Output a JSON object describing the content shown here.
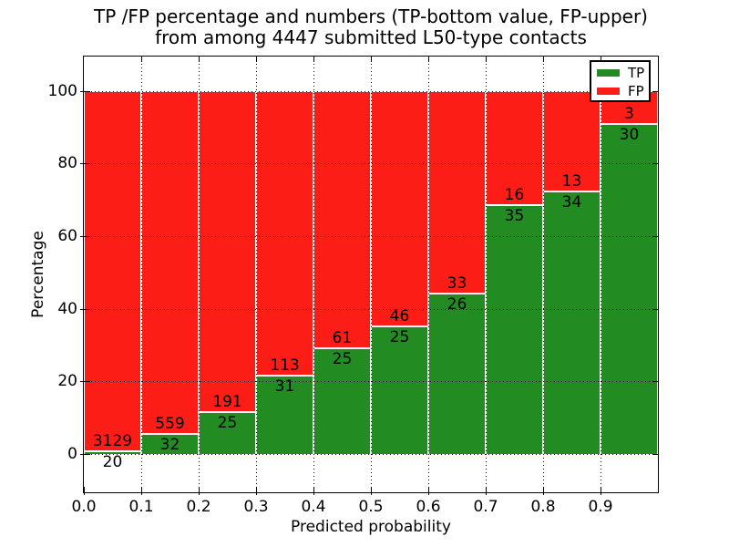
{
  "figure": {
    "title_line1": "TP /FP percentage and numbers (TP-bottom value, FP-upper)",
    "title_line2": "from among 4447 submitted L50-type contacts",
    "xlabel": "Predicted probability",
    "ylabel": "Percentage"
  },
  "legend": {
    "position": "upper right",
    "entries": [
      {
        "label": "TP",
        "color": "#228b22"
      },
      {
        "label": "FP",
        "color": "#fc1d17"
      }
    ]
  },
  "chart_data": {
    "type": "bar",
    "stacked": true,
    "normalized_to_percent": true,
    "title": "TP /FP percentage and numbers (TP-bottom value, FP-upper) from among 4447 submitted L50-type contacts",
    "xlabel": "Predicted probability",
    "ylabel": "Percentage",
    "categories": [
      "0.0",
      "0.1",
      "0.2",
      "0.3",
      "0.4",
      "0.5",
      "0.6",
      "0.7",
      "0.8",
      "0.9"
    ],
    "bin_width": 0.1,
    "series": [
      {
        "name": "TP",
        "color": "#228b22",
        "counts": [
          20,
          32,
          25,
          31,
          25,
          25,
          26,
          35,
          34,
          30
        ]
      },
      {
        "name": "FP",
        "color": "#fc1d17",
        "counts": [
          3129,
          559,
          191,
          113,
          61,
          46,
          33,
          16,
          13,
          3
        ]
      }
    ],
    "total_submitted": 4447,
    "x_ticks": [
      "0.0",
      "0.1",
      "0.2",
      "0.3",
      "0.4",
      "0.5",
      "0.6",
      "0.7",
      "0.8",
      "0.9"
    ],
    "y_ticks": [
      0,
      20,
      40,
      60,
      80,
      100
    ],
    "xlim": [
      0.0,
      1.0
    ],
    "ylim": [
      -10.5,
      109.4
    ],
    "grid": true,
    "grid_style": "dotted",
    "legend_position": "upper right",
    "bar_label_rule": "FP count printed just above TP/FP boundary, TP count just below"
  }
}
